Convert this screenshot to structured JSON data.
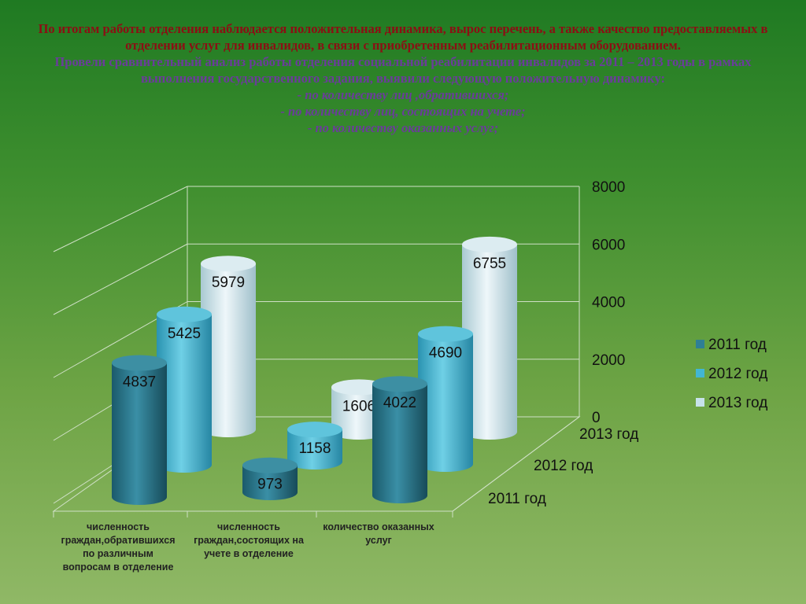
{
  "header": {
    "line1": "По итогам работы отделения наблюдается положительная динамика, вырос перечень, а также качество предоставляемых в отделении услуг для инвалидов, в связи с приобретенным реабилитационным оборудованием.",
    "line2": "Провели сравнительный анализ работы отделения социальной реабилитации инвалидов за 2011 – 2013 годы в рамках выполнения государственного задания, выявили следующую положительную динамику:",
    "bullet1": "- по количеству лиц ,обратившихся;",
    "bullet2": "-  по количеству лиц, состоящих на учете;",
    "bullet3": "- по количеству оказанных услуг;"
  },
  "chart_data": {
    "type": "bar",
    "subtype": "3d-cylinder",
    "categories": [
      "численность граждан,обратившихся по различным вопросам в отделение",
      "численность граждан,состоящих на учете в отделение",
      "количество оказанных услуг"
    ],
    "series": [
      {
        "name": "2011 год",
        "values": [
          4837,
          973,
          4022
        ],
        "color": "#2e7f95"
      },
      {
        "name": "2012 год",
        "values": [
          5425,
          1158,
          4690
        ],
        "color": "#42b6d4"
      },
      {
        "name": "2013 год",
        "values": [
          5979,
          1606,
          6755
        ],
        "color": "#c7e2ea"
      }
    ],
    "yticks": [
      0,
      2000,
      4000,
      6000,
      8000
    ],
    "ylim": [
      0,
      8000
    ],
    "depth_labels": [
      "2013 год",
      "2012 год",
      "2011 год"
    ],
    "legend_position": "right",
    "grid": true
  }
}
